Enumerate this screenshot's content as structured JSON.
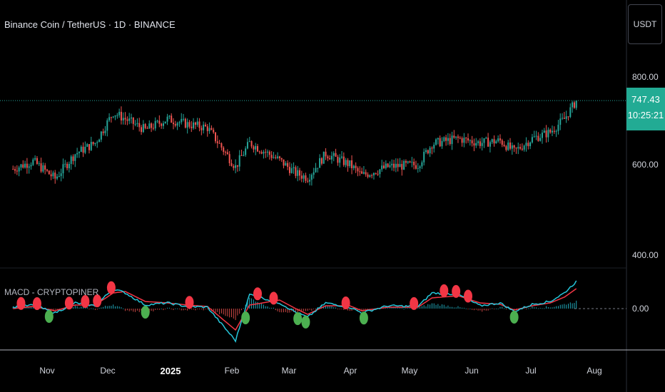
{
  "header": {
    "symbol_title": "Binance Coin / TetherUS · 1D · BINANCE"
  },
  "macd_panel": {
    "title": "MACD - CRYPTOPINER",
    "zero_label": "0.00"
  },
  "price_scale": {
    "currency_button": "USDT",
    "last_price": "747.43",
    "countdown": "10:25:21",
    "ticks": [
      "800.00",
      "600.00",
      "400.00"
    ]
  },
  "time_axis": {
    "labels": [
      "Nov",
      "Dec",
      "2025",
      "Feb",
      "Mar",
      "Apr",
      "May",
      "Jun",
      "Jul",
      "Aug"
    ]
  },
  "colors": {
    "up": "#26a69a",
    "down": "#ef5350",
    "macd_line": "#26c6da",
    "signal_line": "#f23645",
    "sell_marker": "#f23645",
    "buy_marker": "#4caf50",
    "price_badge": "#22ab94"
  },
  "chart_data": [
    {
      "type": "candlestick",
      "title": "Binance Coin / TetherUS · 1D · BINANCE",
      "ylim": [
        350,
        830
      ],
      "yticks": [
        800,
        600,
        400
      ],
      "xlabels": [
        "Nov",
        "Dec",
        "2025",
        "Feb",
        "Mar",
        "Apr",
        "May",
        "Jun",
        "Jul",
        "Aug"
      ],
      "last_price": 747.43,
      "close_path": [
        {
          "date": "2024-10-15",
          "close": 590
        },
        {
          "date": "2024-10-25",
          "close": 608
        },
        {
          "date": "2024-11-05",
          "close": 568
        },
        {
          "date": "2024-11-15",
          "close": 625
        },
        {
          "date": "2024-11-25",
          "close": 650
        },
        {
          "date": "2024-12-04",
          "close": 720
        },
        {
          "date": "2024-12-10",
          "close": 705
        },
        {
          "date": "2024-12-20",
          "close": 680
        },
        {
          "date": "2024-12-31",
          "close": 705
        },
        {
          "date": "2025-01-10",
          "close": 693
        },
        {
          "date": "2025-01-20",
          "close": 685
        },
        {
          "date": "2025-02-03",
          "close": 595
        },
        {
          "date": "2025-02-10",
          "close": 650
        },
        {
          "date": "2025-02-25",
          "close": 610
        },
        {
          "date": "2025-03-05",
          "close": 580
        },
        {
          "date": "2025-03-11",
          "close": 570
        },
        {
          "date": "2025-03-20",
          "close": 625
        },
        {
          "date": "2025-04-01",
          "close": 600
        },
        {
          "date": "2025-04-07",
          "close": 575
        },
        {
          "date": "2025-04-20",
          "close": 595
        },
        {
          "date": "2025-05-05",
          "close": 600
        },
        {
          "date": "2025-05-12",
          "close": 648
        },
        {
          "date": "2025-05-25",
          "close": 660
        },
        {
          "date": "2025-06-05",
          "close": 650
        },
        {
          "date": "2025-06-15",
          "close": 655
        },
        {
          "date": "2025-06-22",
          "close": 630
        },
        {
          "date": "2025-07-01",
          "close": 660
        },
        {
          "date": "2025-07-10",
          "close": 675
        },
        {
          "date": "2025-07-17",
          "close": 705
        },
        {
          "date": "2025-07-23",
          "close": 747
        }
      ]
    },
    {
      "type": "line",
      "title": "MACD - CRYPTOPINER",
      "ylabel_ticks": [
        "0.00"
      ],
      "series": [
        {
          "name": "MACD",
          "values": [
            2,
            5,
            -6,
            8,
            4,
            28,
            22,
            5,
            8,
            3,
            2,
            -45,
            20,
            8,
            -5,
            -12,
            8,
            2,
            -6,
            4,
            3,
            22,
            20,
            4,
            8,
            -4,
            6,
            10,
            22,
            38
          ]
        },
        {
          "name": "Signal",
          "values": [
            0,
            3,
            -3,
            5,
            5,
            22,
            24,
            10,
            8,
            5,
            3,
            -30,
            5,
            12,
            0,
            -8,
            4,
            4,
            -3,
            2,
            2,
            15,
            18,
            8,
            6,
            -2,
            4,
            8,
            16,
            28
          ]
        }
      ],
      "markers": {
        "sell": [
          "2024-10-19",
          "2024-10-27",
          "2024-11-12",
          "2024-11-20",
          "2024-11-26",
          "2024-12-03",
          "2025-01-11",
          "2025-02-14",
          "2025-02-22",
          "2025-03-30",
          "2025-05-03",
          "2025-05-18",
          "2025-05-24",
          "2025-05-30"
        ],
        "buy": [
          "2024-11-02",
          "2024-12-20",
          "2025-02-08",
          "2025-03-06",
          "2025-03-10",
          "2025-04-08",
          "2025-06-22"
        ]
      }
    }
  ]
}
